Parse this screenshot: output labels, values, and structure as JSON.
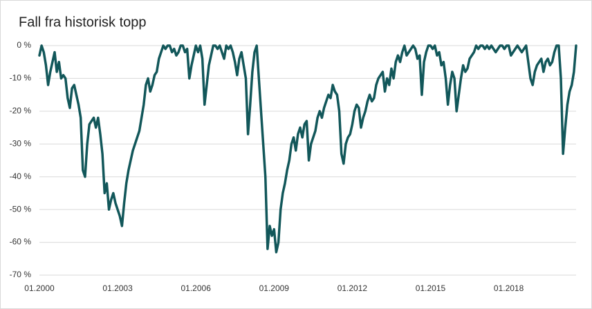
{
  "chart_data": {
    "type": "line",
    "title": "Fall fra historisk topp",
    "x": [
      "01.2000",
      "02.2000",
      "03.2000",
      "04.2000",
      "05.2000",
      "06.2000",
      "07.2000",
      "08.2000",
      "09.2000",
      "10.2000",
      "11.2000",
      "12.2000",
      "01.2001",
      "02.2001",
      "03.2001",
      "04.2001",
      "05.2001",
      "06.2001",
      "07.2001",
      "08.2001",
      "09.2001",
      "10.2001",
      "11.2001",
      "12.2001",
      "01.2002",
      "02.2002",
      "03.2002",
      "04.2002",
      "05.2002",
      "06.2002",
      "07.2002",
      "08.2002",
      "09.2002",
      "10.2002",
      "11.2002",
      "12.2002",
      "01.2003",
      "02.2003",
      "03.2003",
      "04.2003",
      "05.2003",
      "06.2003",
      "07.2003",
      "08.2003",
      "09.2003",
      "10.2003",
      "11.2003",
      "12.2003",
      "01.2004",
      "02.2004",
      "03.2004",
      "04.2004",
      "05.2004",
      "06.2004",
      "07.2004",
      "08.2004",
      "09.2004",
      "10.2004",
      "11.2004",
      "12.2004",
      "01.2005",
      "02.2005",
      "03.2005",
      "04.2005",
      "05.2005",
      "06.2005",
      "07.2005",
      "08.2005",
      "09.2005",
      "10.2005",
      "11.2005",
      "12.2005",
      "01.2006",
      "02.2006",
      "03.2006",
      "04.2006",
      "05.2006",
      "06.2006",
      "07.2006",
      "08.2006",
      "09.2006",
      "10.2006",
      "11.2006",
      "12.2006",
      "01.2007",
      "02.2007",
      "03.2007",
      "04.2007",
      "05.2007",
      "06.2007",
      "07.2007",
      "08.2007",
      "09.2007",
      "10.2007",
      "11.2007",
      "12.2007",
      "01.2008",
      "02.2008",
      "03.2008",
      "04.2008",
      "05.2008",
      "06.2008",
      "07.2008",
      "08.2008",
      "09.2008",
      "10.2008",
      "11.2008",
      "12.2008",
      "01.2009",
      "02.2009",
      "03.2009",
      "04.2009",
      "05.2009",
      "06.2009",
      "07.2009",
      "08.2009",
      "09.2009",
      "10.2009",
      "11.2009",
      "12.2009",
      "01.2010",
      "02.2010",
      "03.2010",
      "04.2010",
      "05.2010",
      "06.2010",
      "07.2010",
      "08.2010",
      "09.2010",
      "10.2010",
      "11.2010",
      "12.2010",
      "01.2011",
      "02.2011",
      "03.2011",
      "04.2011",
      "05.2011",
      "06.2011",
      "07.2011",
      "08.2011",
      "09.2011",
      "10.2011",
      "11.2011",
      "12.2011",
      "01.2012",
      "02.2012",
      "03.2012",
      "04.2012",
      "05.2012",
      "06.2012",
      "07.2012",
      "08.2012",
      "09.2012",
      "10.2012",
      "11.2012",
      "12.2012",
      "01.2013",
      "02.2013",
      "03.2013",
      "04.2013",
      "05.2013",
      "06.2013",
      "07.2013",
      "08.2013",
      "09.2013",
      "10.2013",
      "11.2013",
      "12.2013",
      "01.2014",
      "02.2014",
      "03.2014",
      "04.2014",
      "05.2014",
      "06.2014",
      "07.2014",
      "08.2014",
      "09.2014",
      "10.2014",
      "11.2014",
      "12.2014",
      "01.2015",
      "02.2015",
      "03.2015",
      "04.2015",
      "05.2015",
      "06.2015",
      "07.2015",
      "08.2015",
      "09.2015",
      "10.2015",
      "11.2015",
      "12.2015",
      "01.2016",
      "02.2016",
      "03.2016",
      "04.2016",
      "05.2016",
      "06.2016",
      "07.2016",
      "08.2016",
      "09.2016",
      "10.2016",
      "11.2016",
      "12.2016",
      "01.2017",
      "02.2017",
      "03.2017",
      "04.2017",
      "05.2017",
      "06.2017",
      "07.2017",
      "08.2017",
      "09.2017",
      "10.2017",
      "11.2017",
      "12.2017",
      "01.2018",
      "02.2018",
      "03.2018",
      "04.2018",
      "05.2018",
      "06.2018",
      "07.2018",
      "08.2018",
      "09.2018",
      "10.2018",
      "11.2018",
      "12.2018",
      "01.2019",
      "02.2019",
      "03.2019",
      "04.2019",
      "05.2019",
      "06.2019",
      "07.2019",
      "08.2019",
      "09.2019",
      "10.2019",
      "11.2019",
      "12.2019",
      "01.2020",
      "02.2020",
      "03.2020",
      "04.2020",
      "05.2020",
      "06.2020",
      "07.2020",
      "08.2020"
    ],
    "values": [
      -3,
      0,
      -2,
      -6,
      -12,
      -8,
      -5,
      -2,
      -8,
      -5,
      -10,
      -9,
      -10,
      -16,
      -19,
      -13,
      -12,
      -15,
      -18,
      -22,
      -38,
      -40,
      -30,
      -24,
      -23,
      -22,
      -25,
      -22,
      -27,
      -33,
      -45,
      -42,
      -50,
      -47,
      -45,
      -48,
      -50,
      -52,
      -55,
      -48,
      -42,
      -38,
      -35,
      -32,
      -30,
      -28,
      -26,
      -22,
      -18,
      -12,
      -10,
      -14,
      -12,
      -9,
      -8,
      -4,
      -2,
      0,
      -1,
      0,
      0,
      -2,
      -1,
      -3,
      -2,
      0,
      0,
      -2,
      -1,
      -10,
      -6,
      -3,
      0,
      -2,
      0,
      -4,
      -18,
      -12,
      -6,
      -3,
      0,
      0,
      -1,
      0,
      -2,
      -4,
      0,
      -1,
      0,
      -2,
      -5,
      -9,
      -4,
      -2,
      -6,
      -10,
      -27,
      -18,
      -8,
      -2,
      0,
      -10,
      -20,
      -30,
      -40,
      -62,
      -55,
      -58,
      -56,
      -63,
      -60,
      -50,
      -45,
      -42,
      -38,
      -35,
      -30,
      -28,
      -32,
      -27,
      -25,
      -28,
      -24,
      -23,
      -35,
      -30,
      -28,
      -26,
      -22,
      -20,
      -22,
      -19,
      -17,
      -15,
      -16,
      -12,
      -14,
      -15,
      -20,
      -33,
      -36,
      -30,
      -28,
      -27,
      -24,
      -20,
      -18,
      -19,
      -25,
      -22,
      -20,
      -17,
      -15,
      -17,
      -16,
      -12,
      -10,
      -9,
      -8,
      -14,
      -10,
      -12,
      -7,
      -10,
      -5,
      -3,
      -5,
      -2,
      0,
      -3,
      -2,
      -1,
      0,
      -1,
      -4,
      -3,
      -15,
      -5,
      -2,
      0,
      0,
      -1,
      0,
      -3,
      -2,
      -6,
      -5,
      -10,
      -18,
      -12,
      -8,
      -10,
      -20,
      -15,
      -10,
      -6,
      -8,
      -7,
      -4,
      -3,
      -2,
      0,
      -1,
      0,
      0,
      -1,
      0,
      -1,
      0,
      -1,
      -2,
      -1,
      0,
      0,
      -1,
      0,
      0,
      -3,
      -2,
      -1,
      0,
      -1,
      -2,
      -1,
      0,
      -5,
      -10,
      -12,
      -8,
      -6,
      -5,
      -4,
      -8,
      -5,
      -4,
      -6,
      -5,
      -2,
      0,
      0,
      -10,
      -33,
      -25,
      -18,
      -14,
      -12,
      -8,
      0
    ],
    "color": "#12575a",
    "ylim": [
      -70,
      0
    ],
    "yticks": [
      {
        "value": 0,
        "label": "0 %"
      },
      {
        "value": -10,
        "label": "-10 %"
      },
      {
        "value": -20,
        "label": "-20 %"
      },
      {
        "value": -30,
        "label": "-30 %"
      },
      {
        "value": -40,
        "label": "-40 %"
      },
      {
        "value": -50,
        "label": "-50 %"
      },
      {
        "value": -60,
        "label": "-60 %"
      },
      {
        "value": -70,
        "label": "-70 %"
      }
    ],
    "xticks": [
      "01.2000",
      "01.2003",
      "01.2006",
      "01.2009",
      "01.2012",
      "01.2015",
      "01.2018"
    ],
    "grid": true
  }
}
